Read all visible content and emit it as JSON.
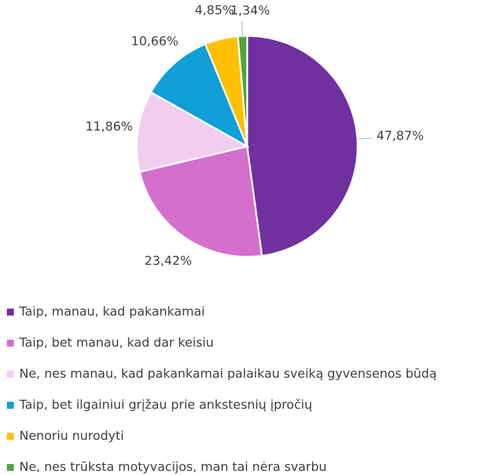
{
  "chart_data": {
    "type": "pie",
    "categories": [
      "Taip, manau, kad pakankamai",
      "Taip, bet manau, kad dar keisiu",
      "Ne, nes manau, kad pakankamai palaikau sveiką gyvensenos būdą",
      "Taip, bet ilgainiui grįžau prie ankstesnių įpročių",
      "Nenoriu nurodyti",
      "Ne, nes trūksta motyvacijos, man tai nėra svarbu"
    ],
    "values": [
      47.87,
      23.42,
      11.86,
      10.66,
      4.85,
      1.34
    ],
    "value_labels": [
      "47,87%",
      "23,42%",
      "11,86%",
      "10,66%",
      "4,85%",
      "1,34%"
    ],
    "colors": [
      "#7030a0",
      "#d46fce",
      "#f2cdf0",
      "#109fd6",
      "#ffc000",
      "#4ca83c"
    ],
    "legend": "bottom"
  }
}
